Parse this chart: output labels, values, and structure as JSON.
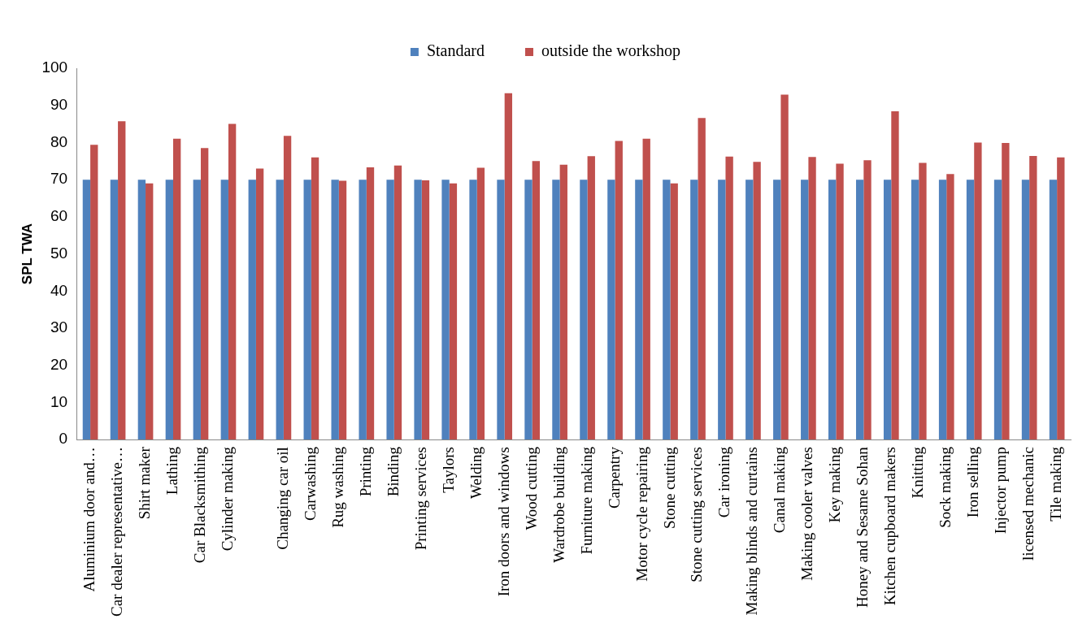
{
  "chart_data": {
    "type": "bar",
    "ylabel": "SPL TWA",
    "categories": [
      "Aluminium door and…",
      "Car dealer representative…",
      "Shirt maker",
      "Lathing",
      "Car Blacksmithing",
      "Cylinder making",
      null,
      "Changing car oil",
      "Carwashing",
      "Rug washing",
      "Printing",
      "Binding",
      "Printing services",
      "Taylors",
      "Welding",
      "Iron doors and windows",
      "Wood cutting",
      "Wardrobe building",
      "Furniture making",
      "Carpentry",
      "Motor cycle repairing",
      "Stone cutting",
      "Stone cutting services",
      "Car ironing",
      "Making blinds and curtains",
      "Canal making",
      "Making cooler valves",
      "Key making",
      "Honey and Sesame Sohan",
      "Kitchen cupboard makers",
      "Knitting",
      "Sock making",
      "Iron selling",
      "Injector pump",
      "licensed mechanic",
      "Tile making"
    ],
    "series": [
      {
        "name": "Standard",
        "color": "#4f81bd",
        "values": [
          70,
          70,
          70,
          70,
          70,
          70,
          70,
          70,
          70,
          70,
          70,
          70,
          70,
          70,
          70,
          70,
          70,
          70,
          70,
          70,
          70,
          70,
          70,
          70,
          70,
          70,
          70,
          70,
          70,
          70,
          70,
          70,
          70,
          70,
          70,
          70
        ]
      },
      {
        "name": "outside the workshop",
        "color": "#c0504d",
        "values": [
          79.4,
          85.7,
          69,
          81,
          78.5,
          85,
          73,
          81.8,
          76,
          69.7,
          73.3,
          73.8,
          69.8,
          69,
          73.2,
          93.3,
          75,
          74,
          76.3,
          80.4,
          81,
          69,
          86.6,
          76.2,
          74.8,
          92.9,
          76.1,
          74.3,
          75.2,
          88.4,
          74.5,
          71.5,
          80,
          79.9,
          76.4,
          76
        ]
      }
    ],
    "ylim": [
      0,
      100
    ],
    "yticks": [
      0,
      10,
      20,
      30,
      40,
      50,
      60,
      70,
      80,
      90,
      100
    ],
    "grid": false,
    "legend": "top"
  }
}
